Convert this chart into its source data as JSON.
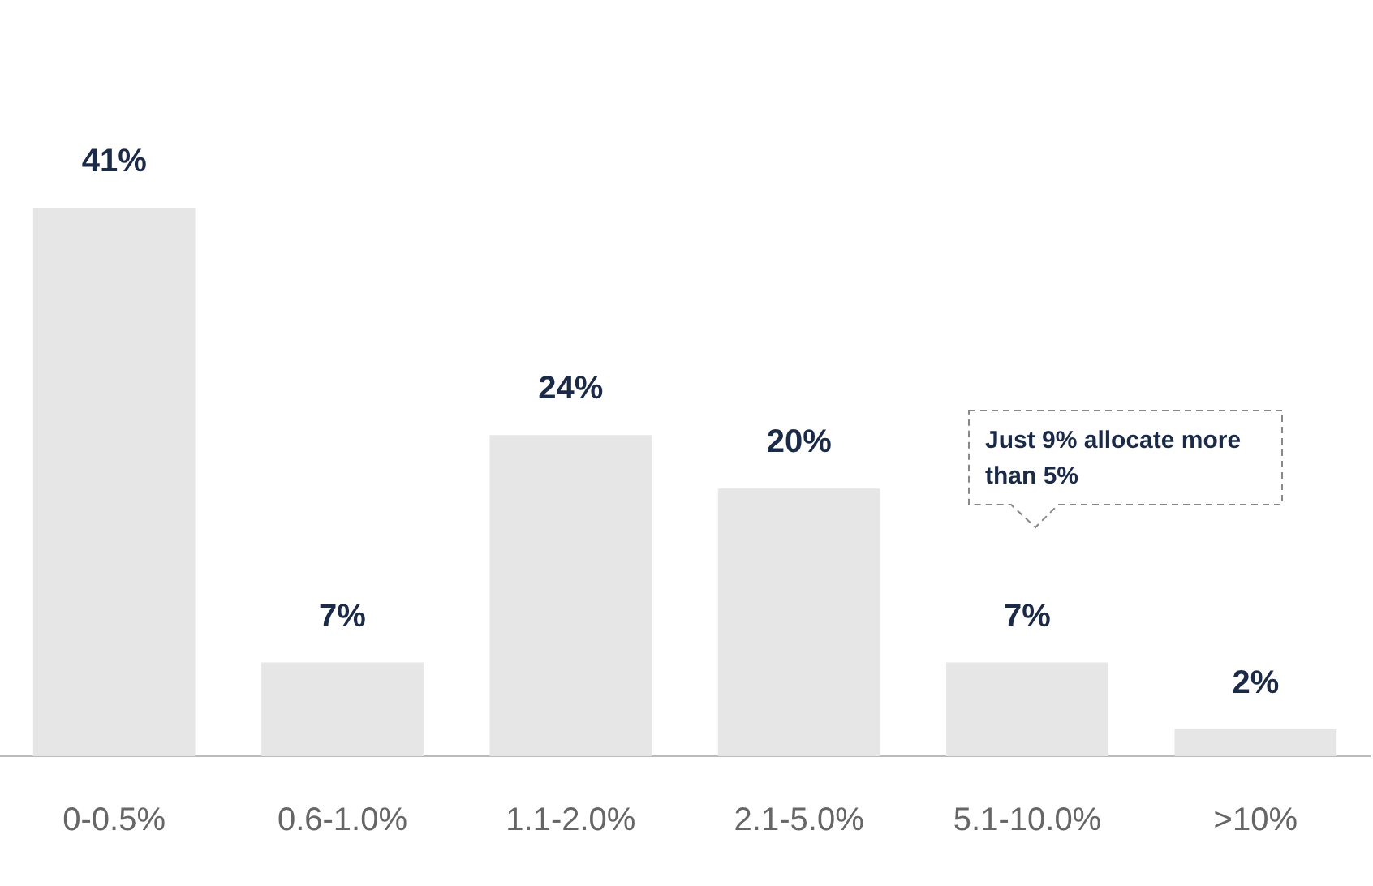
{
  "chart_data": {
    "type": "bar",
    "categories": [
      "0-0.5%",
      "0.6-1.0%",
      "1.1-2.0%",
      "2.1-5.0%",
      "5.1-10.0%",
      ">10%"
    ],
    "values": [
      41,
      7,
      24,
      20,
      7,
      2
    ],
    "value_labels": [
      "41%",
      "7%",
      "24%",
      "20%",
      "7%",
      "2%"
    ],
    "color": "#e6e6e6",
    "grid": false,
    "legend": false,
    "tick_labels": "x",
    "annotations": [
      "Just 9% allocate more than 5%"
    ]
  }
}
